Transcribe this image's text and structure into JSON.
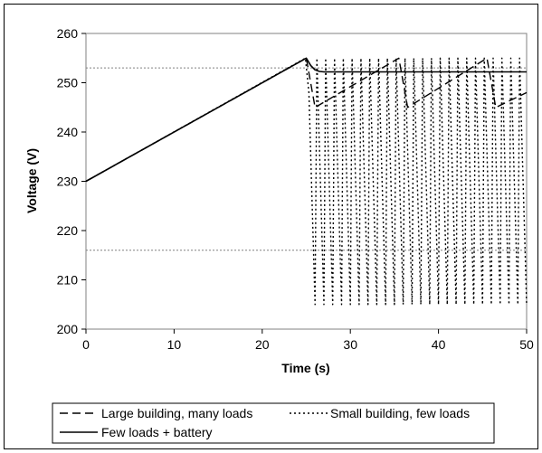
{
  "chart_data": {
    "type": "line",
    "xlabel": "Time (s)",
    "ylabel": "Voltage (V)",
    "xlim": [
      0,
      50
    ],
    "ylim": [
      200,
      260
    ],
    "xticks": [
      "0",
      "10",
      "20",
      "30",
      "40",
      "50"
    ],
    "yticks": [
      "200",
      "210",
      "220",
      "230",
      "240",
      "250",
      "260"
    ],
    "grid": false,
    "legend_position": "bottom",
    "reference_lines": [
      {
        "y": 253,
        "x_start": 0,
        "x_end": 50,
        "style": "dotted"
      },
      {
        "y": 216,
        "x_start": 0,
        "x_end": 50,
        "style": "dotted"
      }
    ],
    "series": [
      {
        "name": "Large building, many loads",
        "style": "dashed",
        "color": "#000000",
        "x": [
          0,
          25,
          26,
          35.5,
          36.5,
          45.5,
          46.5,
          50
        ],
        "y": [
          230,
          255,
          245,
          255,
          245,
          255,
          245,
          248
        ]
      },
      {
        "name": "Small building, few loads",
        "style": "dotted",
        "color": "#000000",
        "x": [
          0,
          24.9,
          25.3,
          26,
          26.2,
          27,
          27.2,
          28,
          28.2,
          29,
          29.2,
          30,
          30.2,
          31,
          31.2,
          32,
          32.2,
          33,
          33.2,
          34,
          34.2,
          35,
          35.2,
          36,
          36.2,
          37,
          37.2,
          38,
          38.2,
          39,
          39.2,
          40,
          40.2,
          41,
          41.2,
          42,
          42.2,
          43,
          43.2,
          44,
          44.2,
          45,
          45.2,
          46,
          46.2,
          47,
          47.2,
          48,
          48.2,
          49,
          49.2,
          50
        ],
        "y": [
          230,
          255,
          248,
          205,
          255,
          205,
          255,
          205,
          255,
          205,
          255,
          205,
          255,
          205,
          255,
          205,
          255,
          205,
          255,
          205,
          255,
          205,
          255,
          205,
          255,
          205,
          255,
          205,
          255,
          205,
          255,
          205,
          255,
          205,
          255,
          205,
          255,
          205,
          255,
          205,
          255,
          205,
          255,
          205,
          255,
          205,
          255,
          205,
          255,
          205,
          255,
          205
        ]
      },
      {
        "name": "Few loads + battery",
        "style": "solid",
        "color": "#000000",
        "x": [
          0,
          25,
          25.5,
          26,
          26.5,
          27,
          28,
          50
        ],
        "y": [
          230,
          255,
          253.5,
          252.6,
          252.3,
          252.2,
          252.2,
          252.2
        ]
      }
    ]
  }
}
